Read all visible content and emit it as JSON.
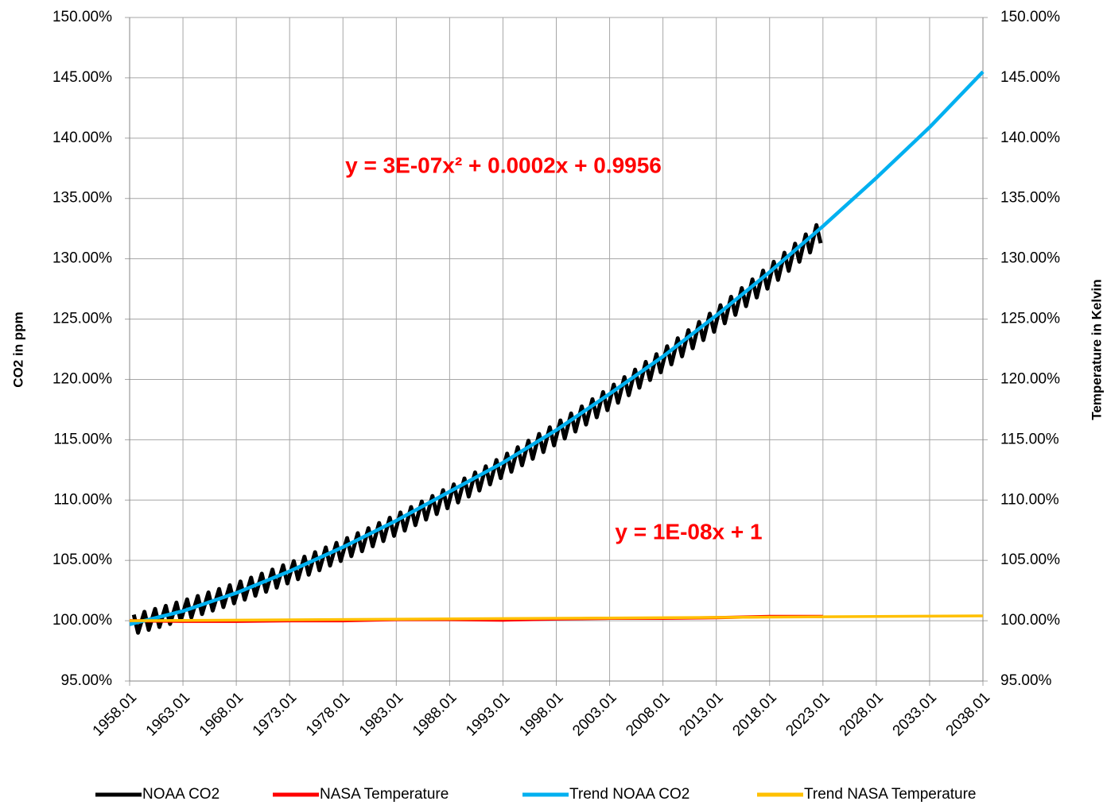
{
  "chart_data": {
    "type": "line",
    "y_label": "CO2 in ppm",
    "y2_label": "Temperature in Kelvin",
    "annotations": [
      "y = 3E-07x² + 0.0002x + 0.9956",
      "y = 1E-08x + 1"
    ],
    "xlim": [
      1958.01,
      2038.01
    ],
    "xticks": [
      1958.01,
      1963.01,
      1968.01,
      1973.01,
      1978.01,
      1983.01,
      1988.01,
      1993.01,
      1998.01,
      2003.01,
      2008.01,
      2013.01,
      2018.01,
      2023.01,
      2028.01,
      2033.01,
      2038.01
    ],
    "ylim": [
      95,
      150
    ],
    "yticks": [
      {
        "value": 95,
        "label": "95.00%"
      },
      {
        "value": 100,
        "label": "100.00%"
      },
      {
        "value": 105,
        "label": "105.00%"
      },
      {
        "value": 110,
        "label": "110.00%"
      },
      {
        "value": 115,
        "label": "115.00%"
      },
      {
        "value": 120,
        "label": "120.00%"
      },
      {
        "value": 125,
        "label": "125.00%"
      },
      {
        "value": 130,
        "label": "130.00%"
      },
      {
        "value": 135,
        "label": "135.00%"
      },
      {
        "value": 140,
        "label": "140.00%"
      },
      {
        "value": 145,
        "label": "145.00%"
      },
      {
        "value": 150,
        "label": "150.00%"
      }
    ],
    "y2lim": [
      95,
      150
    ],
    "y2ticks": [
      {
        "value": 95,
        "label": "95.00%"
      },
      {
        "value": 100,
        "label": "100.00%"
      },
      {
        "value": 105,
        "label": "105.00%"
      },
      {
        "value": 110,
        "label": "110.00%"
      },
      {
        "value": 115,
        "label": "115.00%"
      },
      {
        "value": 120,
        "label": "120.00%"
      },
      {
        "value": 125,
        "label": "125.00%"
      },
      {
        "value": 130,
        "label": "130.00%"
      },
      {
        "value": 135,
        "label": "135.00%"
      },
      {
        "value": 140,
        "label": "140.00%"
      },
      {
        "value": 145,
        "label": "145.00%"
      },
      {
        "value": 150,
        "label": "150.00%"
      }
    ],
    "grid": true,
    "legend": "bottom",
    "series": [
      {
        "name": "NOAA CO2",
        "color": "#000000",
        "x": [
          1958.4,
          1958.8,
          1959.4,
          1959.8,
          1960.4,
          1960.8,
          1961.4,
          1961.8,
          1962.4,
          1962.8,
          1963.4,
          1963.8,
          1964.4,
          1964.8,
          1965.4,
          1965.8,
          1966.4,
          1966.8,
          1967.4,
          1967.8,
          1968.4,
          1968.8,
          1969.4,
          1969.8,
          1970.4,
          1970.8,
          1971.4,
          1971.8,
          1972.4,
          1972.8,
          1973.4,
          1973.8,
          1974.4,
          1974.8,
          1975.4,
          1975.8,
          1976.4,
          1976.8,
          1977.4,
          1977.8,
          1978.4,
          1978.8,
          1979.4,
          1979.8,
          1980.4,
          1980.8,
          1981.4,
          1981.8,
          1982.4,
          1982.8,
          1983.4,
          1983.8,
          1984.4,
          1984.8,
          1985.4,
          1985.8,
          1986.4,
          1986.8,
          1987.4,
          1987.8,
          1988.4,
          1988.8,
          1989.4,
          1989.8,
          1990.4,
          1990.8,
          1991.4,
          1991.8,
          1992.4,
          1992.8,
          1993.4,
          1993.8,
          1994.4,
          1994.8,
          1995.4,
          1995.8,
          1996.4,
          1996.8,
          1997.4,
          1997.8,
          1998.4,
          1998.8,
          1999.4,
          1999.8,
          2000.4,
          2000.8,
          2001.4,
          2001.8,
          2002.4,
          2002.8,
          2003.4,
          2003.8,
          2004.4,
          2004.8,
          2005.4,
          2005.8,
          2006.4,
          2006.8,
          2007.4,
          2007.8,
          2008.4,
          2008.8,
          2009.4,
          2009.8,
          2010.4,
          2010.8,
          2011.4,
          2011.8,
          2012.4,
          2012.8,
          2013.4,
          2013.8,
          2014.4,
          2014.8,
          2015.4,
          2015.8,
          2016.4,
          2016.8,
          2017.4,
          2017.8,
          2018.4,
          2018.8,
          2019.4,
          2019.8,
          2020.4,
          2020.8,
          2021.4,
          2021.8,
          2022.4,
          2022.8
        ],
        "values": [
          100.5,
          99.0,
          100.74,
          99.24,
          100.98,
          99.48,
          101.23,
          99.73,
          101.5,
          100.0,
          101.77,
          100.27,
          102.05,
          100.55,
          102.34,
          100.84,
          102.63,
          101.13,
          102.94,
          101.44,
          103.25,
          101.75,
          103.57,
          102.07,
          103.9,
          102.4,
          104.24,
          102.74,
          104.59,
          103.09,
          104.94,
          103.44,
          105.31,
          103.81,
          105.68,
          104.18,
          106.07,
          104.57,
          106.45,
          104.95,
          106.85,
          105.35,
          107.26,
          105.76,
          107.67,
          106.17,
          108.1,
          106.6,
          108.53,
          107.03,
          108.97,
          107.47,
          109.42,
          107.92,
          109.88,
          108.38,
          110.34,
          108.84,
          110.82,
          109.32,
          111.3,
          109.8,
          111.79,
          110.29,
          112.29,
          110.79,
          112.8,
          111.3,
          113.32,
          111.82,
          113.85,
          112.35,
          114.38,
          112.88,
          114.92,
          113.42,
          115.48,
          113.98,
          116.03,
          114.53,
          116.6,
          115.1,
          117.18,
          115.68,
          117.76,
          116.26,
          118.36,
          116.86,
          118.95,
          117.45,
          119.57,
          118.07,
          120.19,
          118.69,
          120.81,
          119.31,
          121.45,
          119.95,
          122.09,
          120.59,
          122.75,
          121.25,
          123.41,
          121.91,
          124.08,
          122.58,
          124.76,
          123.26,
          125.45,
          123.95,
          126.15,
          124.65,
          126.85,
          125.35,
          127.57,
          126.07,
          128.29,
          126.79,
          129.02,
          127.52,
          129.75,
          128.25,
          130.5,
          129.0,
          131.25,
          129.75,
          132.02,
          130.52,
          132.79,
          131.29
        ]
      },
      {
        "name": "NASA Temperature",
        "color": "#ff0000",
        "axis": "y2",
        "x": [
          1958.01,
          1963.01,
          1968.01,
          1973.01,
          1978.01,
          1983.01,
          1988.01,
          1993.01,
          1998.01,
          2003.01,
          2008.01,
          2013.01,
          2018.01,
          2023.01
        ],
        "values": [
          100.0,
          99.95,
          99.95,
          100.0,
          100.0,
          100.1,
          100.1,
          100.05,
          100.15,
          100.2,
          100.2,
          100.25,
          100.35,
          100.35
        ]
      },
      {
        "name": "Trend NOAA CO2",
        "color": "#00b0f0",
        "x": [
          1958.01,
          1963.01,
          1968.01,
          1973.01,
          1978.01,
          1983.01,
          1988.01,
          1993.01,
          1998.01,
          2003.01,
          2008.01,
          2013.01,
          2018.01,
          2023.01,
          2028.01,
          2033.01,
          2038.01
        ],
        "values": [
          99.7,
          100.8,
          102.3,
          104.1,
          106.1,
          108.3,
          110.7,
          113.1,
          115.8,
          118.8,
          121.9,
          125.3,
          128.9,
          132.7,
          136.7,
          140.9,
          145.5
        ]
      },
      {
        "name": "Trend NASA Temperature",
        "color": "#ffc000",
        "axis": "y2",
        "x": [
          1958.01,
          2038.01
        ],
        "values": [
          100.0,
          100.4
        ]
      }
    ]
  }
}
